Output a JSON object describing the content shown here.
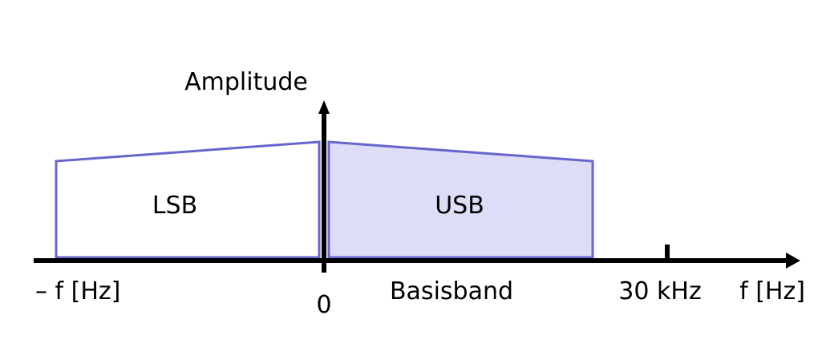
{
  "y_axis_label": "Amplitude",
  "lower_band_label": "LSB",
  "upper_band_label": "USB",
  "neg_freq_label": "– f [Hz]",
  "origin_label": "0",
  "baseband_label": "Basisband",
  "tick_label": "30 kHz",
  "pos_freq_label": "f [Hz]",
  "colors": {
    "band_stroke": "#6666cc",
    "usb_fill": "#ddddf7",
    "lsb_fill": "#ffffff",
    "axis": "#000000"
  }
}
